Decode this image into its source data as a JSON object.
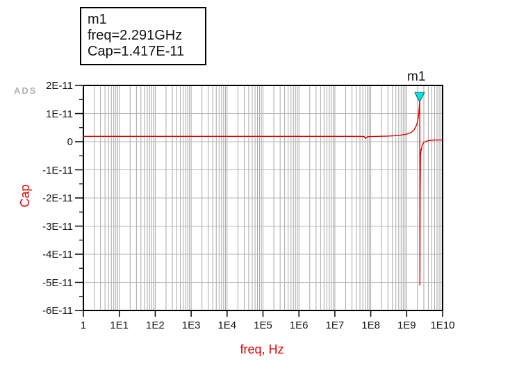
{
  "watermark": "ADS",
  "marker": {
    "name": "m1",
    "freq_line": "freq=2.291GHz",
    "cap_line": "Cap=1.417E-11"
  },
  "colors": {
    "trace": "#dd0000",
    "axis_title": "#e60000",
    "grid_vertical": "#a8a8a8",
    "grid_horizontal": "#b5b5b5",
    "frame": "#000000",
    "marker_fill": "#00e6e6",
    "marker_stroke": "#005e5e",
    "tick_label": "#141414",
    "watermark_gray": "#b2b2b2"
  },
  "chart_data": {
    "type": "line",
    "title": "",
    "xlabel": "freq, Hz",
    "ylabel": "Cap",
    "x_scale": "log",
    "xlim": [
      1,
      10000000000.0
    ],
    "ylim": [
      -6e-11,
      2e-11
    ],
    "grid": true,
    "legend_position": "none",
    "x_tick_labels": [
      "1",
      "1E1",
      "1E2",
      "1E3",
      "1E4",
      "1E5",
      "1E6",
      "1E7",
      "1E8",
      "1E9",
      "1E10"
    ],
    "x_tick_values": [
      1,
      10.0,
      100.0,
      1000.0,
      10000.0,
      100000.0,
      1000000.0,
      10000000.0,
      100000000.0,
      1000000000.0,
      10000000000.0
    ],
    "y_tick_labels": [
      "2E-11",
      "1E-11",
      "0",
      "-1E-11",
      "-2E-11",
      "-3E-11",
      "-4E-11",
      "-5E-11",
      "-6E-11"
    ],
    "y_tick_values": [
      2e-11,
      1e-11,
      0,
      -1e-11,
      -2e-11,
      -3e-11,
      -4e-11,
      -5e-11,
      -6e-11
    ],
    "marker_point": {
      "label": "m1",
      "freq": 2291000000.0,
      "cap": 1.417e-11
    },
    "series": [
      {
        "name": "Cap",
        "color": "#dd0000",
        "points": [
          [
            1,
            1.9e-12
          ],
          [
            1000000.0,
            1.9e-12
          ],
          [
            30000000.0,
            1.9e-12
          ],
          [
            65000000.0,
            1.85e-12
          ],
          [
            72000000.0,
            1.15e-12
          ],
          [
            82000000.0,
            1.8e-12
          ],
          [
            300000000.0,
            2e-12
          ],
          [
            600000000.0,
            2.2e-12
          ],
          [
            1000000000.0,
            2.7e-12
          ],
          [
            1300000000.0,
            3.2e-12
          ],
          [
            1600000000.0,
            4.2e-12
          ],
          [
            1900000000.0,
            6e-12
          ],
          [
            2100000000.0,
            8.5e-12
          ],
          [
            2200000000.0,
            1.1e-11
          ],
          [
            2260000000.0,
            1.3e-11
          ],
          [
            2291000000.0,
            1.417e-11
          ],
          [
            2310000000.0,
            1.56e-11
          ],
          [
            2330000000.0,
            -5.1e-11
          ],
          [
            2370000000.0,
            -1.8e-11
          ],
          [
            2430000000.0,
            -5e-12
          ],
          [
            2500000000.0,
            -2.8e-12
          ],
          [
            2560000000.0,
            -3e-12
          ],
          [
            2700000000.0,
            -1.2e-12
          ],
          [
            3000000000.0,
            -2e-13
          ],
          [
            4000000000.0,
            4e-13
          ],
          [
            6000000000.0,
            6e-13
          ],
          [
            10000000000.0,
            6.5e-13
          ]
        ]
      }
    ]
  }
}
